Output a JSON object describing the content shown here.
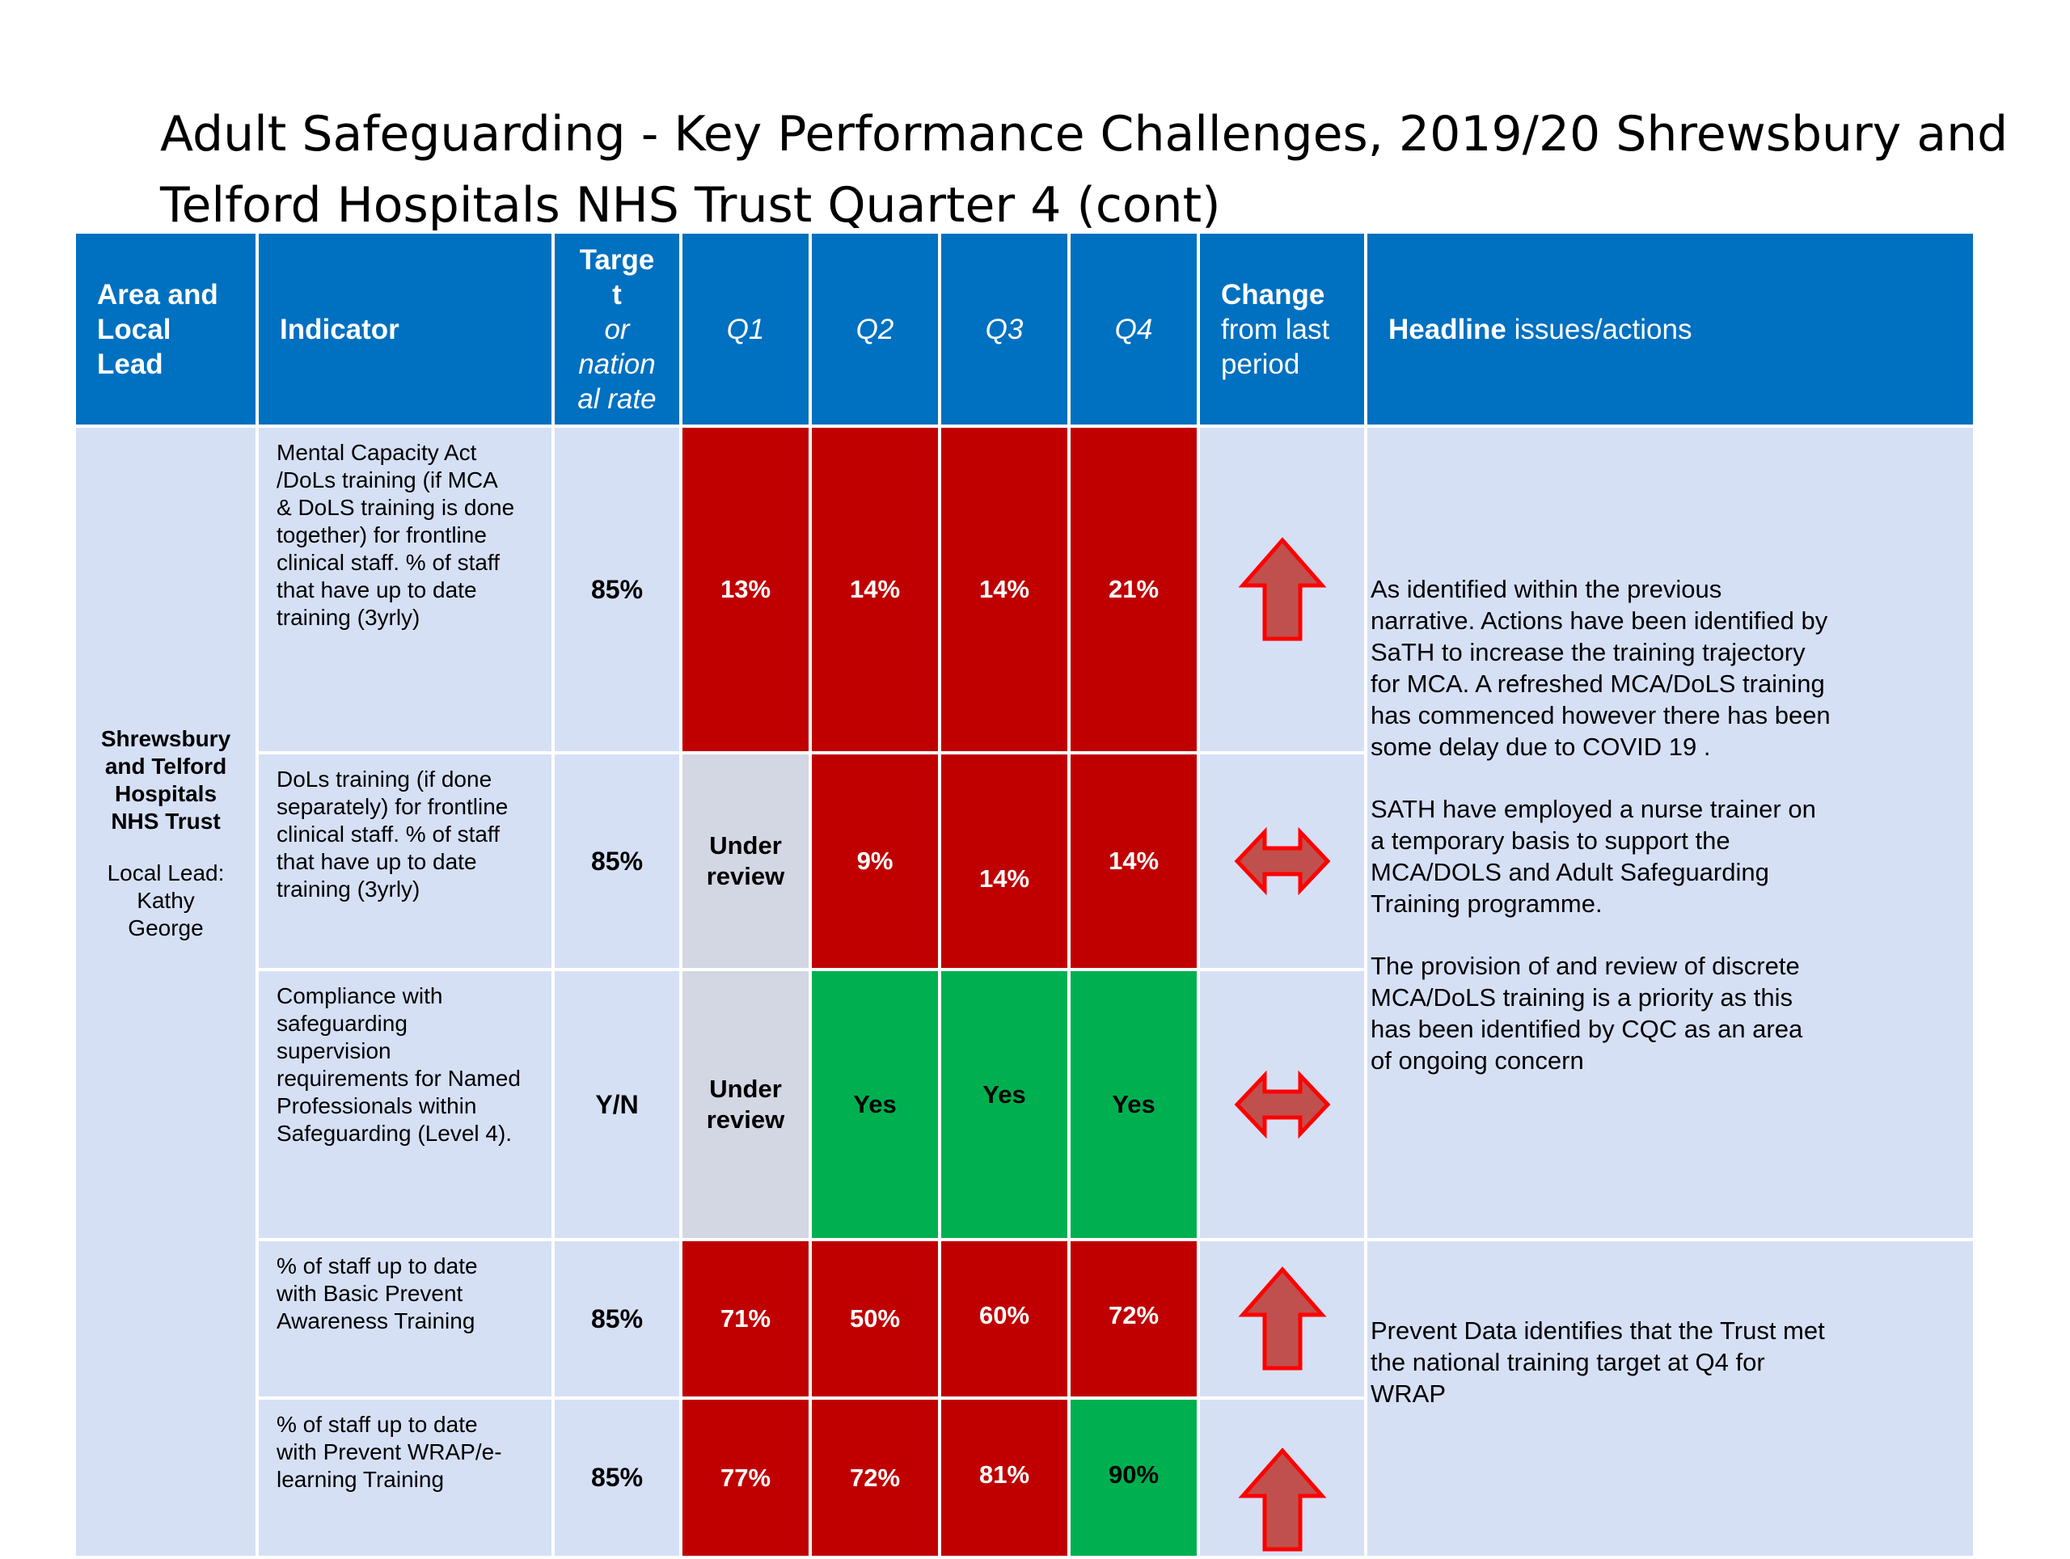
{
  "title": {
    "line1": "Adult Safeguarding - Key Performance Challenges, 2019/20 Shrewsbury and",
    "line2": "Telford Hospitals NHS Trust Quarter 4 (cont)"
  },
  "header": {
    "area_l1": "Area and",
    "area_l2": "Local",
    "area_l3": "Lead",
    "indicator": "Indicator",
    "target_l1": "Targe",
    "target_l2": "t",
    "target_l3": "or",
    "target_l4": "nation",
    "target_l5": "al rate",
    "q1": "Q1",
    "q2": "Q2",
    "q3": "Q3",
    "q4": "Q4",
    "change_l1": "Change",
    "change_l2": "from last",
    "change_l3": "period",
    "headline_bold": "Headline",
    "headline_rest": " issues/actions"
  },
  "area": {
    "org_l1": "Shrewsbury",
    "org_l2": "and Telford",
    "org_l3": "Hospitals",
    "org_l4": "NHS Trust",
    "lead_l1": "Local Lead:",
    "lead_l2": "Kathy",
    "lead_l3": "George"
  },
  "rows": [
    {
      "indicator": [
        "Mental Capacity Act",
        "/DoLs training (if MCA",
        "& DoLS training is done",
        "together) for frontline",
        "clinical staff. % of staff",
        "that have up to date",
        "training (3yrly)"
      ],
      "target": "85%",
      "q1": "13%",
      "q2": "14%",
      "q3": "14%",
      "q4": "21%",
      "q1_status": "red",
      "q2_status": "red",
      "q3_status": "red",
      "q4_status": "red",
      "change_icon": "up-arrow-icon"
    },
    {
      "indicator": [
        "DoLs training (if done",
        "separately) for frontline",
        "clinical staff. % of staff",
        "that have up to date",
        "training (3yrly)"
      ],
      "target": "85%",
      "q1": "Under review",
      "q2": "9%",
      "q3": "14%",
      "q4": "14%",
      "q1_status": "grey",
      "q2_status": "red",
      "q3_status": "red",
      "q4_status": "red",
      "change_icon": "left-right-arrow-icon"
    },
    {
      "indicator": [
        "Compliance with",
        "safeguarding",
        "supervision",
        "requirements for Named",
        "Professionals within",
        "Safeguarding (Level 4)."
      ],
      "target": "Y/N",
      "q1": "Under review",
      "q2": "Yes",
      "q3": "Yes",
      "q4": "Yes",
      "q1_status": "grey",
      "q2_status": "green",
      "q3_status": "green",
      "q4_status": "green",
      "change_icon": "left-right-arrow-icon"
    },
    {
      "indicator": [
        "% of staff up to date",
        "with Basic Prevent",
        "Awareness Training"
      ],
      "target": "85%",
      "q1": "71%",
      "q2": "50%",
      "q3": "60%",
      "q4": "72%",
      "q1_status": "red",
      "q2_status": "red",
      "q3_status": "red",
      "q4_status": "red",
      "change_icon": "up-arrow-icon"
    },
    {
      "indicator": [
        "% of staff up to date",
        "with Prevent WRAP/e-",
        "learning Training"
      ],
      "target": "85%",
      "q1": "77%",
      "q2": "72%",
      "q3": "81%",
      "q4": "90%",
      "q1_status": "red",
      "q2_status": "red",
      "q3_status": "red",
      "q4_status": "green",
      "change_icon": "up-arrow-icon"
    }
  ],
  "headline_group1": [
    [
      "As identified within the previous",
      "narrative. Actions have been identified by",
      "SaTH to   increase the training trajectory",
      "for MCA. A refreshed MCA/DoLS training",
      "has commenced however there has been",
      "some delay due to COVID 19 ."
    ],
    [
      "SATH have employed a nurse trainer  on",
      "a temporary basis to support the",
      "MCA/DOLS and Adult Safeguarding",
      "Training programme."
    ],
    [
      "The provision of and review of discrete",
      "MCA/DoLS training is a priority as this",
      "has been identified  by CQC as an area",
      "of ongoing concern"
    ]
  ],
  "headline_group2": [
    [
      "Prevent Data identifies that the Trust met",
      "the national training target at Q4 for",
      "WRAP"
    ]
  ],
  "colors": {
    "header_blue": "#0070c0",
    "row_bg": "#d6e0f5",
    "red_status": "#c00000",
    "green_status": "#00b050",
    "grey_status": "#d3d6e3",
    "arrow_fill": "#c0504d",
    "arrow_stroke": "#ff0000"
  }
}
